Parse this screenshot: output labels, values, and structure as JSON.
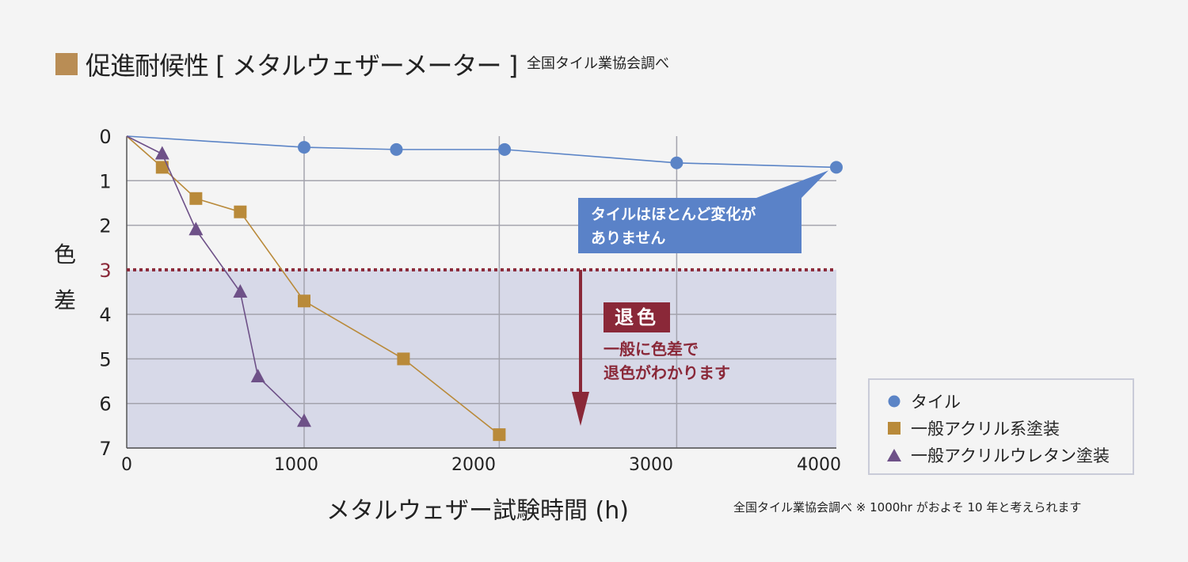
{
  "title": "促進耐候性 [ メタルウェザーメーター ]",
  "source": "全国タイル業協会調べ",
  "ylabel_chars": [
    "色",
    "差"
  ],
  "xlabel": "メタルウェザー試験時間 (h)",
  "footnote": "全国タイル業協会調べ ※ 1000hr がおよそ 10 年と考えられます",
  "colors": {
    "title_square": "#b98d55",
    "tile": "#5b84c6",
    "acrylic": "#b98a3a",
    "urethane": "#6e5188",
    "threshold": "#8a2838",
    "shade": "#d7d9e8",
    "grid": "#a3a3ad",
    "callout_bg": "#5a82c8"
  },
  "annotations": {
    "tile_note": [
      "タイルはほとんど変化が",
      "ありません"
    ],
    "fade_badge": "退色",
    "fade_note": [
      "一般に色差で",
      "退色がわかります"
    ]
  },
  "legend": [
    {
      "label": "タイル",
      "marker": "circle",
      "series": "tile"
    },
    {
      "label": "一般アクリル系塗装",
      "marker": "square",
      "series": "acrylic"
    },
    {
      "label": "一般アクリルウレタン塗装",
      "marker": "triangle",
      "series": "urethane"
    }
  ],
  "chart_data": {
    "type": "line",
    "xlabel": "メタルウェザー試験時間 (h)",
    "ylabel": "色差",
    "xlim": [
      0,
      4000
    ],
    "ylim": [
      0,
      7
    ],
    "y_inverted": true,
    "x_ticks": [
      0,
      1000,
      2000,
      3000,
      4000
    ],
    "y_ticks": [
      0,
      1,
      2,
      3,
      4,
      5,
      6,
      7
    ],
    "vertical_gridlines": [
      1000,
      2100,
      3100
    ],
    "threshold": 3,
    "shaded_region": [
      3,
      7
    ],
    "series": [
      {
        "name": "タイル",
        "key": "tile",
        "marker": "circle",
        "points": [
          [
            0,
            0
          ],
          [
            1000,
            0.25
          ],
          [
            1520,
            0.3
          ],
          [
            2130,
            0.3
          ],
          [
            3100,
            0.6
          ],
          [
            4000,
            0.7
          ]
        ]
      },
      {
        "name": "一般アクリル系塗装",
        "key": "acrylic",
        "marker": "square",
        "points": [
          [
            0,
            0
          ],
          [
            200,
            0.7
          ],
          [
            390,
            1.4
          ],
          [
            640,
            1.7
          ],
          [
            1000,
            3.7
          ],
          [
            1560,
            5.0
          ],
          [
            2100,
            6.7
          ]
        ]
      },
      {
        "name": "一般アクリルウレタン塗装",
        "key": "urethane",
        "marker": "triangle",
        "points": [
          [
            0,
            0
          ],
          [
            200,
            0.4
          ],
          [
            390,
            2.1
          ],
          [
            640,
            3.5
          ],
          [
            740,
            5.4
          ],
          [
            1000,
            6.4
          ]
        ]
      }
    ]
  }
}
